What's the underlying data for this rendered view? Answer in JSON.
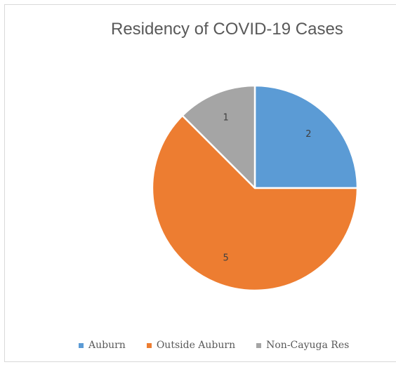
{
  "chart_data": {
    "type": "pie",
    "title": "Residency of COVID-19 Cases",
    "categories": [
      "Auburn",
      "Outside Auburn",
      "Non-Cayuga Res"
    ],
    "values": [
      2,
      5,
      1
    ],
    "colors": [
      "#5b9bd5",
      "#ed7d31",
      "#a5a5a5"
    ],
    "data_labels": [
      "2",
      "5",
      "1"
    ],
    "legend_position": "bottom"
  }
}
